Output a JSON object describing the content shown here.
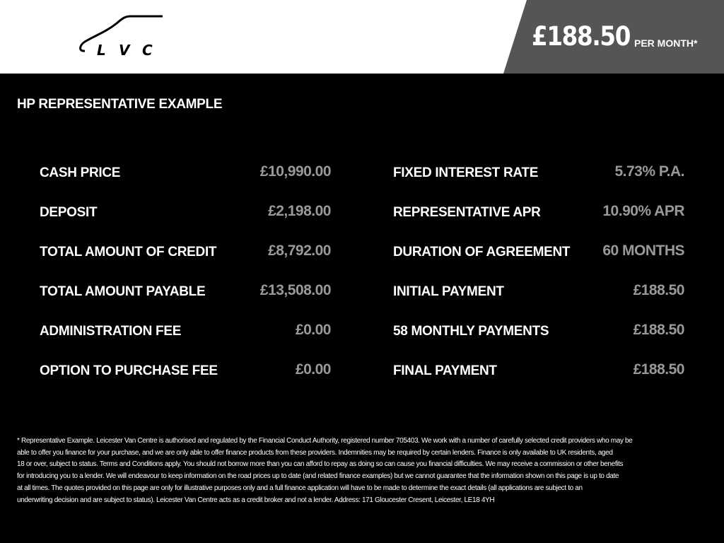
{
  "header": {
    "logo_text": "LVC",
    "monthly_price": "£188.50",
    "per_month_label": "PER MONTH*"
  },
  "section_title": "HP REPRESENTATIVE EXAMPLE",
  "left_rows": [
    {
      "label": "CASH PRICE",
      "value": "£10,990.00"
    },
    {
      "label": "DEPOSIT",
      "value": "£2,198.00"
    },
    {
      "label": "TOTAL AMOUNT OF CREDIT",
      "value": "£8,792.00"
    },
    {
      "label": "TOTAL AMOUNT PAYABLE",
      "value": "£13,508.00"
    },
    {
      "label": "ADMINISTRATION FEE",
      "value": "£0.00"
    },
    {
      "label": "OPTION TO PURCHASE FEE",
      "value": "£0.00"
    }
  ],
  "right_rows": [
    {
      "label": "FIXED INTEREST RATE",
      "value": "5.73% P.A."
    },
    {
      "label": "REPRESENTATIVE APR",
      "value": "10.90% APR"
    },
    {
      "label": "DURATION OF AGREEMENT",
      "value": "60 MONTHS"
    },
    {
      "label": "INITIAL PAYMENT",
      "value": "£188.50"
    },
    {
      "label": "58 MONTHLY PAYMENTS",
      "value": "£188.50"
    },
    {
      "label": "FINAL PAYMENT",
      "value": "£188.50"
    }
  ],
  "footer_lines": [
    "* Representative Example. Leicester Van Centre is authorised and regulated by the Financial Conduct Authority, registered number 705403. We work with a number of carefully selected credit providers who may be",
    "able to offer you finance for your purchase, and we are only able to offer finance products from these providers. Indemnities may be required by certain lenders. Finance is only available to UK residents, aged",
    "18 or over, subject to status. Terms and Conditions apply. You should not borrow more than you can afford to repay as doing so can cause you financial difficulties. We may receive a commission or other benefits",
    "for introducing you to a lender. We will endeavour to keep information on the road prices up to date (and related finance examples) but we cannot guarantee that the information shown on this page is up to date",
    "at all times. The quotes provided on this page are only for illustrative purposes only and a full finance application will have to be made to determine the exact details (all applications are subject to an",
    "underwriting decision and are subject to status). Leicester Van Centre acts as a credit broker and not a lender. Address: 171 Gloucester Cresent, Leicester, LE18 4YH"
  ]
}
